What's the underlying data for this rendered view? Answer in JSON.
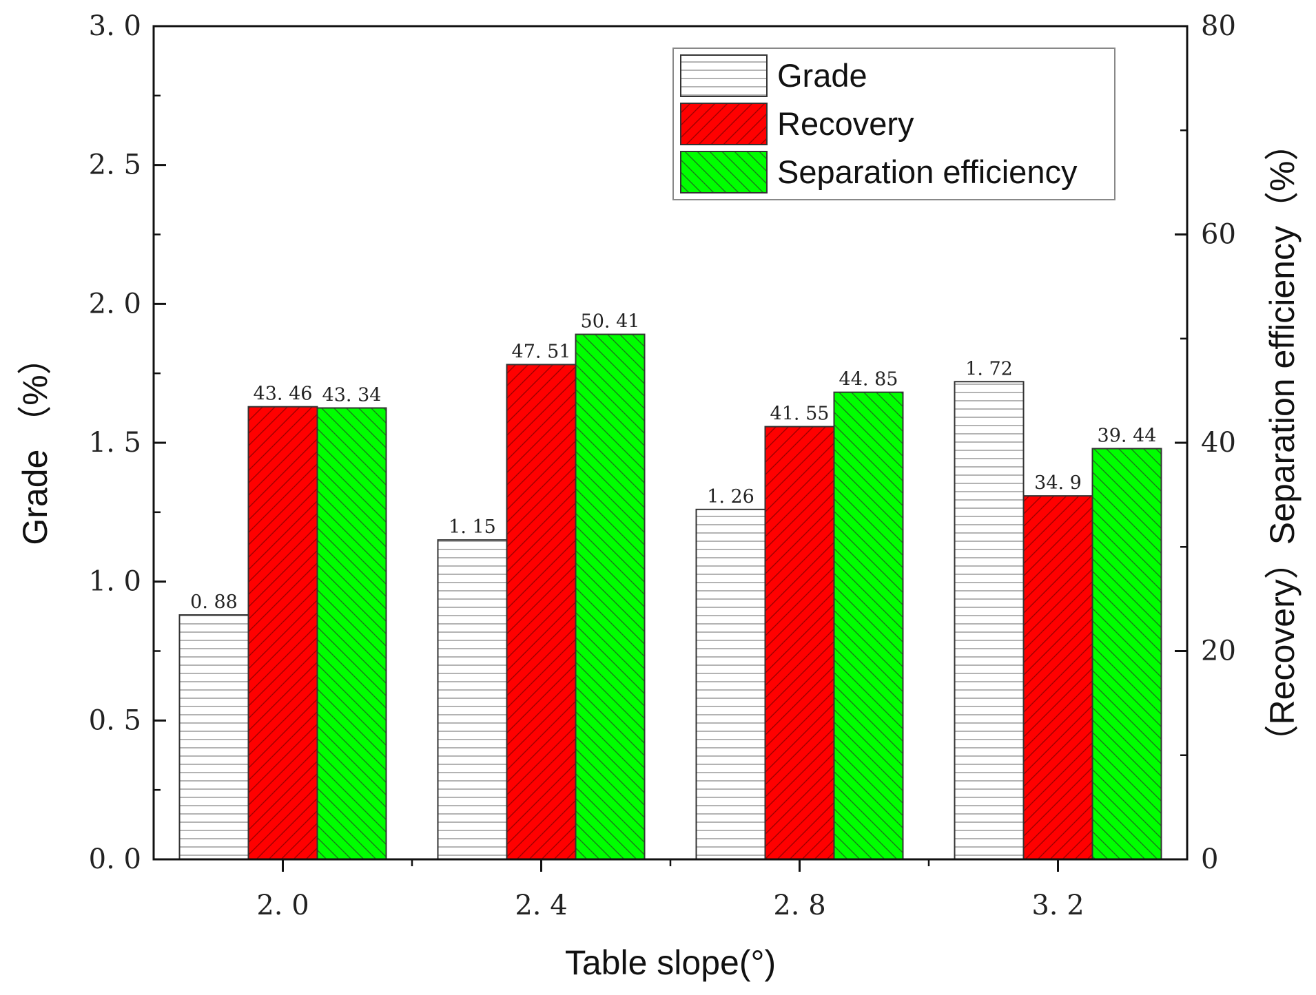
{
  "chart_data": {
    "type": "bar",
    "title": "",
    "xlabel": "Table slope(°)",
    "ylabel": "Grade （%）",
    "y2label": "（Recovery）Separation efficiency（%）",
    "categories": [
      "2. 0",
      "2. 4",
      "2. 8",
      "3. 2"
    ],
    "ylim": [
      0,
      3.0
    ],
    "y2lim": [
      0,
      80
    ],
    "yticks": [
      "0. 0",
      "0. 5",
      "1. 0",
      "1. 5",
      "2. 0",
      "2. 5",
      "3. 0"
    ],
    "y2ticks": [
      "0",
      "20",
      "40",
      "60",
      "80"
    ],
    "legend_position": "top-right",
    "series": [
      {
        "name": "Grade",
        "axis": "left",
        "values": [
          0.88,
          1.15,
          1.26,
          1.72
        ],
        "labels": [
          "0. 88",
          "1. 15",
          "1. 26",
          "1. 72"
        ],
        "color": "#ffffff",
        "pattern": "horizontal"
      },
      {
        "name": "Recovery",
        "axis": "right",
        "values": [
          43.46,
          47.51,
          41.55,
          34.9
        ],
        "labels": [
          "43. 46",
          "47. 51",
          "41. 55",
          "34. 9"
        ],
        "color": "#ff0000",
        "pattern": "diag-up"
      },
      {
        "name": "Separation efficiency",
        "axis": "right",
        "values": [
          43.34,
          50.41,
          44.85,
          39.44
        ],
        "labels": [
          "43. 34",
          "50. 41",
          "44. 85",
          "39. 44"
        ],
        "color": "#00ff00",
        "pattern": "diag-down"
      }
    ]
  }
}
